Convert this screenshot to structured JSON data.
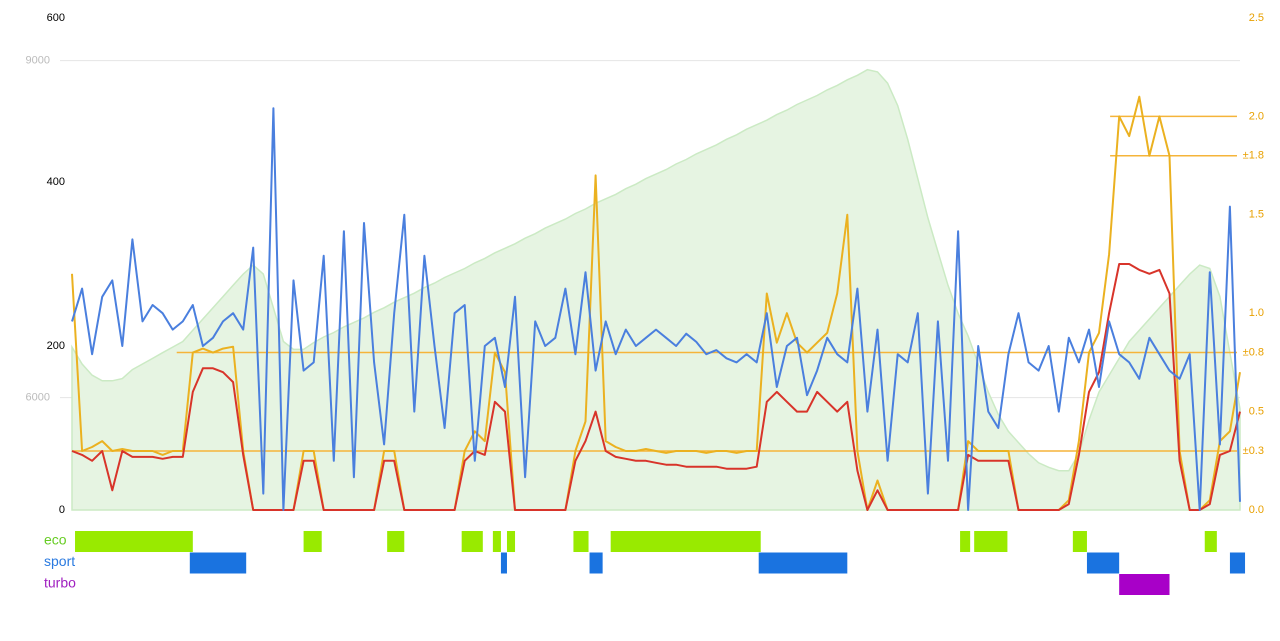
{
  "chart_data": {
    "type": "line",
    "xlim": [
      0,
      116
    ],
    "ylim": [
      0,
      600
    ],
    "yticks": [
      0,
      200,
      400,
      600
    ],
    "y2lim": [
      0,
      2.5
    ],
    "y2ticks": [
      {
        "value": 0,
        "label": "0.0"
      },
      {
        "value": 0.5,
        "label": "0.5"
      },
      {
        "value": 1,
        "label": "1.0"
      },
      {
        "value": 1.5,
        "label": "1.5"
      },
      {
        "value": 2,
        "label": "2.0"
      },
      {
        "value": 2.5,
        "label": "2.5"
      }
    ],
    "y3lim": [
      5000,
      9380
    ],
    "y3ticks": [
      6000,
      9000
    ],
    "series": [
      {
        "type": "area",
        "color": "#e6f4e2",
        "line_color": "#cbeac4",
        "axis": "y3",
        "values": [
          6450,
          6300,
          6200,
          6150,
          6150,
          6170,
          6250,
          6300,
          6350,
          6400,
          6450,
          6500,
          6600,
          6700,
          6800,
          6900,
          7000,
          7100,
          7180,
          7100,
          6800,
          6500,
          6430,
          6430,
          6490,
          6540,
          6580,
          6630,
          6670,
          6710,
          6760,
          6800,
          6850,
          6890,
          6930,
          6980,
          7020,
          7070,
          7110,
          7150,
          7200,
          7240,
          7290,
          7330,
          7370,
          7420,
          7460,
          7510,
          7550,
          7590,
          7640,
          7680,
          7730,
          7770,
          7810,
          7860,
          7900,
          7950,
          7990,
          8030,
          8080,
          8120,
          8170,
          8210,
          8250,
          8300,
          8340,
          8390,
          8430,
          8470,
          8520,
          8560,
          8610,
          8650,
          8690,
          8740,
          8780,
          8830,
          8870,
          8920,
          8900,
          8800,
          8600,
          8300,
          7950,
          7600,
          7300,
          7000,
          6750,
          6550,
          6300,
          6050,
          5850,
          5700,
          5600,
          5500,
          5420,
          5380,
          5350,
          5350,
          5500,
          5800,
          6050,
          6200,
          6350,
          6500,
          6600,
          6700,
          6800,
          6900,
          7000,
          7100,
          7180,
          7150,
          6900,
          6400,
          5900
        ]
      },
      {
        "type": "line",
        "color": "#ebb120",
        "axis": "y2",
        "values": [
          1.2,
          0.3,
          0.32,
          0.35,
          0.3,
          0.31,
          0.3,
          0.3,
          0.3,
          0.28,
          0.3,
          0.3,
          0.8,
          0.82,
          0.8,
          0.82,
          0.83,
          0.3,
          0,
          0,
          0,
          0,
          0,
          0.3,
          0.3,
          0,
          0,
          0,
          0,
          0,
          0,
          0.3,
          0.3,
          0,
          0,
          0,
          0,
          0,
          0,
          0.3,
          0.4,
          0.35,
          0.8,
          0.7,
          0,
          0,
          0,
          0,
          0,
          0,
          0.3,
          0.45,
          1.7,
          0.35,
          0.32,
          0.3,
          0.3,
          0.31,
          0.3,
          0.29,
          0.3,
          0.3,
          0.3,
          0.29,
          0.3,
          0.3,
          0.29,
          0.3,
          0.3,
          1.1,
          0.85,
          1.0,
          0.85,
          0.8,
          0.85,
          0.9,
          1.1,
          1.5,
          0.3,
          0,
          0.15,
          0,
          0,
          0,
          0,
          0,
          0,
          0,
          0,
          0.35,
          0.3,
          0.3,
          0.3,
          0.3,
          0,
          0,
          0,
          0,
          0,
          0.05,
          0.35,
          0.8,
          0.9,
          1.3,
          2.0,
          1.9,
          2.1,
          1.8,
          2.0,
          1.8,
          0.3,
          0,
          0,
          0.05,
          0.35,
          0.4,
          0.7
        ]
      },
      {
        "type": "line",
        "color": "#d8342a",
        "axis": "y2",
        "values": [
          0.3,
          0.28,
          0.25,
          0.3,
          0.1,
          0.3,
          0.27,
          0.27,
          0.27,
          0.26,
          0.27,
          0.27,
          0.6,
          0.72,
          0.72,
          0.7,
          0.65,
          0.28,
          0,
          0,
          0,
          0,
          0,
          0.25,
          0.25,
          0,
          0,
          0,
          0,
          0,
          0,
          0.25,
          0.25,
          0,
          0,
          0,
          0,
          0,
          0,
          0.25,
          0.3,
          0.28,
          0.55,
          0.5,
          0,
          0,
          0,
          0,
          0,
          0,
          0.25,
          0.35,
          0.5,
          0.3,
          0.27,
          0.26,
          0.25,
          0.25,
          0.24,
          0.23,
          0.23,
          0.22,
          0.22,
          0.22,
          0.22,
          0.21,
          0.21,
          0.21,
          0.22,
          0.55,
          0.6,
          0.55,
          0.5,
          0.5,
          0.6,
          0.55,
          0.5,
          0.55,
          0.2,
          0,
          0.1,
          0,
          0,
          0,
          0,
          0,
          0,
          0,
          0,
          0.28,
          0.25,
          0.25,
          0.25,
          0.25,
          0,
          0,
          0,
          0,
          0,
          0.03,
          0.28,
          0.6,
          0.7,
          1.0,
          1.25,
          1.25,
          1.22,
          1.2,
          1.22,
          1.1,
          0.25,
          0,
          0,
          0.03,
          0.28,
          0.3,
          0.5
        ]
      },
      {
        "type": "line",
        "color": "#4a7fde",
        "axis": "y",
        "values": [
          230,
          270,
          190,
          260,
          280,
          200,
          330,
          230,
          250,
          240,
          220,
          230,
          250,
          200,
          210,
          230,
          240,
          220,
          320,
          20,
          490,
          0,
          280,
          170,
          180,
          310,
          60,
          340,
          40,
          350,
          180,
          80,
          240,
          360,
          120,
          310,
          200,
          100,
          240,
          250,
          60,
          200,
          210,
          150,
          260,
          40,
          230,
          200,
          210,
          270,
          190,
          290,
          170,
          230,
          190,
          220,
          200,
          210,
          220,
          210,
          200,
          215,
          205,
          190,
          195,
          185,
          180,
          190,
          180,
          240,
          150,
          200,
          210,
          140,
          170,
          210,
          190,
          180,
          270,
          120,
          220,
          60,
          190,
          180,
          240,
          20,
          230,
          60,
          340,
          0,
          200,
          120,
          100,
          190,
          240,
          180,
          170,
          200,
          120,
          210,
          180,
          220,
          150,
          230,
          190,
          180,
          160,
          210,
          190,
          170,
          160,
          190,
          0,
          290,
          80,
          370,
          10
        ]
      }
    ],
    "reference_lines": [
      {
        "value": 0.8,
        "label": "±0.8",
        "x": [
          10.4,
          115.7
        ]
      },
      {
        "value": 0.3,
        "label": "±0.3",
        "x": [
          0,
          115.7
        ]
      },
      {
        "value": 1.8,
        "label": "±1.8",
        "x": [
          103.1,
          115.7
        ]
      },
      {
        "value": 2.0,
        "x": [
          103.1,
          115.7
        ]
      }
    ],
    "ref_color": "#f5b43a",
    "modes": [
      {
        "name": "eco",
        "color": "#99ea00",
        "label_color": "#66cc22",
        "segments": [
          [
            0.3,
            12.0
          ],
          [
            23.0,
            24.8
          ],
          [
            31.3,
            33.0
          ],
          [
            38.7,
            40.8
          ],
          [
            41.8,
            42.6
          ],
          [
            43.2,
            44.0
          ],
          [
            49.8,
            51.3
          ],
          [
            53.5,
            68.4
          ],
          [
            88.2,
            89.2
          ],
          [
            89.6,
            92.9
          ],
          [
            99.4,
            100.8
          ],
          [
            112.5,
            113.7
          ]
        ]
      },
      {
        "name": "sport",
        "color": "#1a73e0",
        "label_color": "#2a7ae0",
        "segments": [
          [
            11.7,
            17.3
          ],
          [
            42.6,
            43.2
          ],
          [
            51.4,
            52.7
          ],
          [
            68.2,
            77.0
          ],
          [
            100.8,
            104.0
          ],
          [
            115.0,
            116.5
          ]
        ]
      },
      {
        "name": "turbo",
        "color": "#a800c8",
        "label_color": "#a020c0",
        "segments": [
          [
            104.0,
            109.0
          ]
        ]
      }
    ]
  }
}
